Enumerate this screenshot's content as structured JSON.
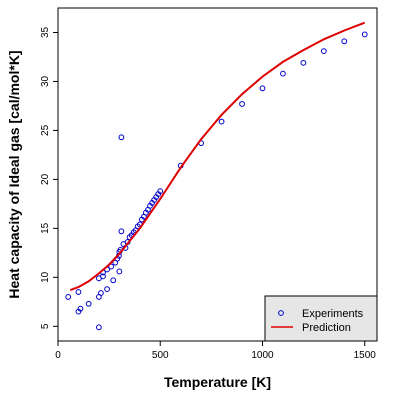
{
  "chart_data": {
    "type": "scatter",
    "title": "",
    "xlabel": "Temperature [K]",
    "ylabel": "Heat capacity of Ideal gas [cal/mol*K]",
    "xlim": [
      0,
      1560
    ],
    "ylim": [
      3.5,
      37.5
    ],
    "xticks": [
      0,
      500,
      1000,
      1500
    ],
    "yticks": [
      5,
      10,
      15,
      20,
      25,
      30,
      35
    ],
    "grid": false,
    "legend_position": "bottom-right",
    "series": [
      {
        "name": "Experiments",
        "kind": "points",
        "color": "#0000cc",
        "marker": "open-circle",
        "points": [
          [
            50,
            8.0
          ],
          [
            100,
            8.5
          ],
          [
            100,
            6.5
          ],
          [
            110,
            6.8
          ],
          [
            150,
            7.3
          ],
          [
            200,
            4.9
          ],
          [
            200,
            8.0
          ],
          [
            200,
            9.9
          ],
          [
            210,
            8.4
          ],
          [
            220,
            10.1
          ],
          [
            220,
            10.5
          ],
          [
            240,
            8.8
          ],
          [
            240,
            10.8
          ],
          [
            260,
            11.1
          ],
          [
            270,
            9.7
          ],
          [
            280,
            11.5
          ],
          [
            290,
            11.9
          ],
          [
            298,
            12.2
          ],
          [
            300,
            10.6
          ],
          [
            300,
            12.6
          ],
          [
            305,
            12.8
          ],
          [
            310,
            14.7
          ],
          [
            310,
            24.3
          ],
          [
            320,
            13.4
          ],
          [
            330,
            13.0
          ],
          [
            340,
            13.6
          ],
          [
            350,
            14.1
          ],
          [
            360,
            14.3
          ],
          [
            370,
            14.6
          ],
          [
            380,
            14.8
          ],
          [
            390,
            15.2
          ],
          [
            400,
            15.4
          ],
          [
            410,
            15.9
          ],
          [
            420,
            16.2
          ],
          [
            430,
            16.6
          ],
          [
            440,
            16.9
          ],
          [
            450,
            17.3
          ],
          [
            460,
            17.6
          ],
          [
            470,
            17.9
          ],
          [
            480,
            18.2
          ],
          [
            490,
            18.5
          ],
          [
            500,
            18.8
          ],
          [
            600,
            21.4
          ],
          [
            700,
            23.7
          ],
          [
            800,
            25.9
          ],
          [
            900,
            27.7
          ],
          [
            1000,
            29.3
          ],
          [
            1100,
            30.8
          ],
          [
            1200,
            31.9
          ],
          [
            1300,
            33.1
          ],
          [
            1400,
            34.1
          ],
          [
            1500,
            34.8
          ]
        ]
      },
      {
        "name": "Prediction",
        "kind": "line",
        "color": "#dd0000",
        "points": [
          [
            60,
            8.7
          ],
          [
            100,
            9.0
          ],
          [
            150,
            9.6
          ],
          [
            200,
            10.4
          ],
          [
            250,
            11.3
          ],
          [
            300,
            12.4
          ],
          [
            350,
            13.7
          ],
          [
            400,
            15.0
          ],
          [
            450,
            16.5
          ],
          [
            500,
            18.0
          ],
          [
            600,
            21.2
          ],
          [
            700,
            24.1
          ],
          [
            800,
            26.6
          ],
          [
            900,
            28.7
          ],
          [
            1000,
            30.5
          ],
          [
            1100,
            32.0
          ],
          [
            1200,
            33.2
          ],
          [
            1300,
            34.3
          ],
          [
            1400,
            35.2
          ],
          [
            1500,
            36.0
          ]
        ]
      }
    ]
  }
}
